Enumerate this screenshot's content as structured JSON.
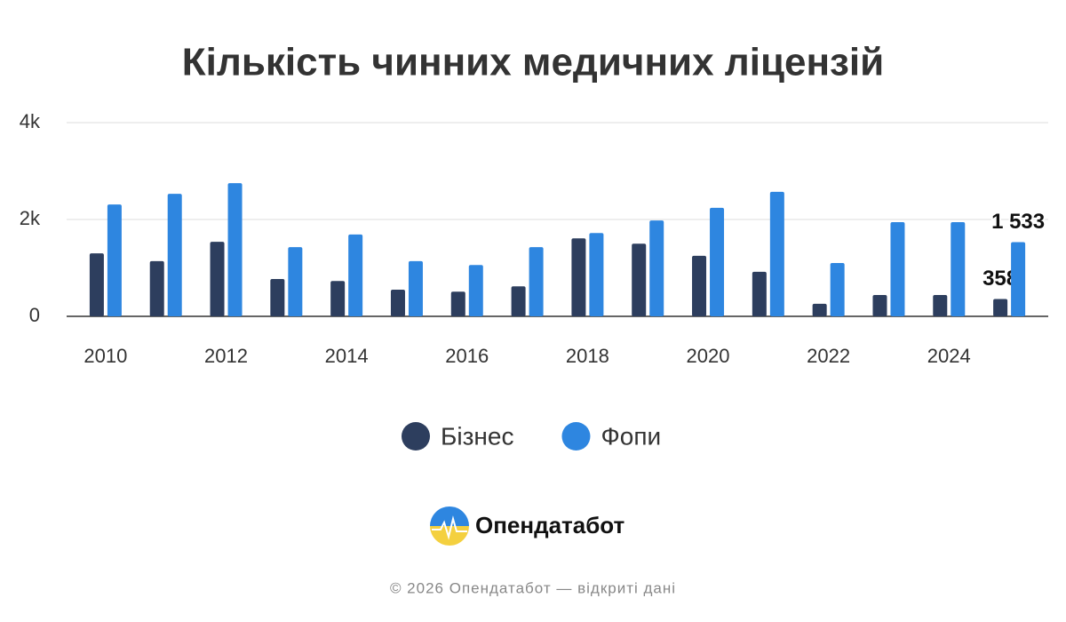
{
  "chart_data": {
    "type": "bar",
    "title": "Кількість чинних медичних ліцензій",
    "categories": [
      "2010",
      null,
      "2012",
      null,
      "2014",
      null,
      "2016",
      null,
      "2018",
      null,
      "2020",
      null,
      "2022",
      null,
      "2024",
      null
    ],
    "series": [
      {
        "name": "Бізнес",
        "color": "#2d3e5e",
        "values": [
          1300,
          1140,
          1540,
          770,
          730,
          550,
          510,
          620,
          1610,
          1500,
          1250,
          920,
          260,
          440,
          440,
          358
        ],
        "value_labels": [
          null,
          null,
          null,
          null,
          null,
          null,
          null,
          null,
          null,
          null,
          null,
          null,
          null,
          null,
          null,
          "358"
        ]
      },
      {
        "name": "Фопи",
        "color": "#2e86e0",
        "values": [
          2310,
          2530,
          2750,
          1430,
          1690,
          1140,
          1060,
          1430,
          1720,
          1980,
          2240,
          2570,
          1100,
          1945,
          1945,
          1533
        ],
        "value_labels": [
          null,
          null,
          null,
          null,
          null,
          null,
          null,
          null,
          null,
          null,
          null,
          null,
          null,
          null,
          null,
          "1 533"
        ]
      }
    ],
    "ylim": [
      0,
      4000
    ],
    "yticks": [
      0,
      {
        "value": 2000,
        "label": "2k"
      },
      {
        "value": 4000,
        "label": "4k"
      }
    ],
    "grid": true
  },
  "brand": "Опендатабот",
  "footer": "© 2026 Опендатабот — відкриті дані"
}
